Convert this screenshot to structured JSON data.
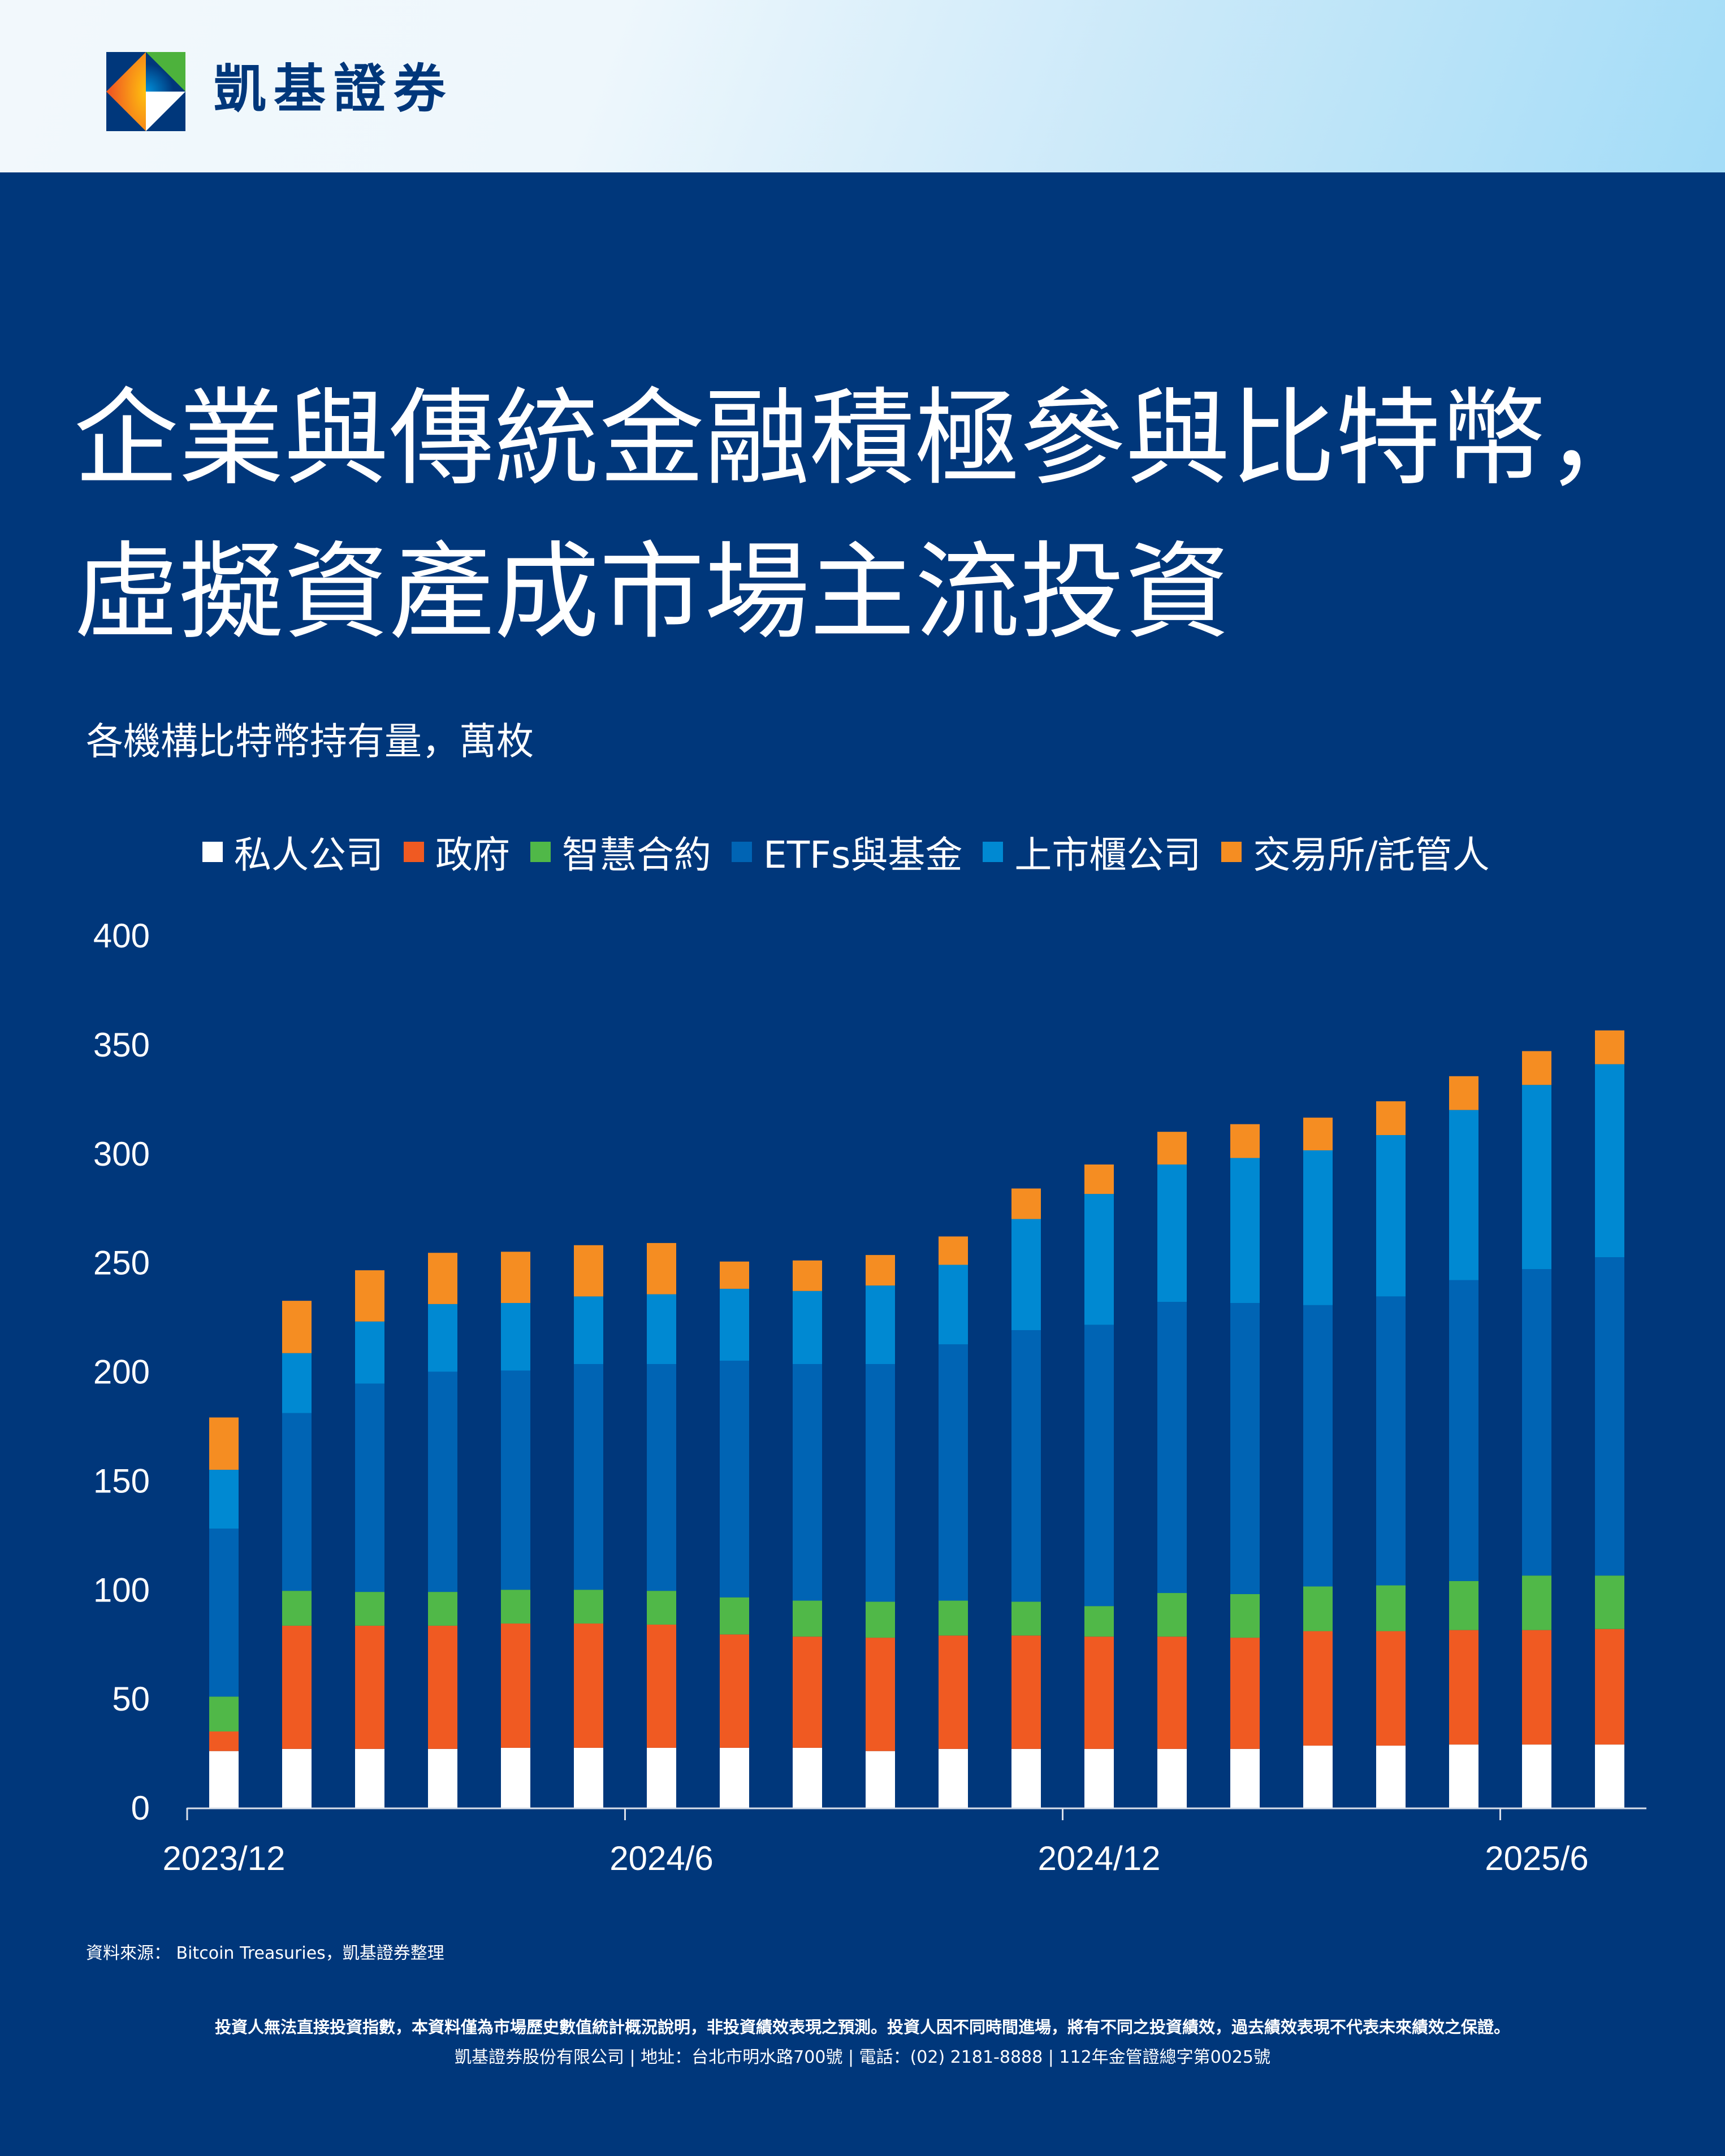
{
  "header": {
    "brand_name": "凱基證券",
    "logo_colors": {
      "navy": "#00377b",
      "green": "#4db23c",
      "orange": "#f05a22",
      "yellow": "#ffc20e",
      "blue": "#0093dd",
      "white": "#ffffff"
    }
  },
  "title": {
    "line1": "企業與傳統金融積極參與比特幣，",
    "line2": "虛擬資產成市場主流投資"
  },
  "colors": {
    "background": "#00377b",
    "axis": "#d9dfea",
    "text": "#ffffff"
  },
  "chart_data": {
    "type": "bar",
    "stacked": true,
    "title": "各機構比特幣持有量，萬枚",
    "xlabel": "",
    "ylabel": "",
    "ylim": [
      0,
      400
    ],
    "y_ticks": [
      "0",
      "50",
      "100",
      "150",
      "200",
      "250",
      "300",
      "350",
      "400"
    ],
    "x_tick_labels": [
      {
        "bar_index": 0,
        "label": "2023/12"
      },
      {
        "bar_index": 6,
        "label": "2024/6"
      },
      {
        "bar_index": 12,
        "label": "2024/12"
      },
      {
        "bar_index": 18,
        "label": "2025/6"
      }
    ],
    "grid": false,
    "legend_position": "top",
    "bar_count": 20,
    "series": [
      {
        "name": "私人公司",
        "color": "#ffffff",
        "values": [
          26,
          27,
          27,
          27,
          27.5,
          27.5,
          27.5,
          27.5,
          27.5,
          26,
          27,
          27,
          27,
          27,
          27,
          28.5,
          28.5,
          29,
          29,
          29
        ]
      },
      {
        "name": "政府",
        "color": "#f05a22",
        "values": [
          9,
          56.5,
          56.5,
          56.5,
          57,
          57,
          56.5,
          52,
          51,
          52,
          52,
          52,
          51.5,
          51.5,
          51,
          52.5,
          52.5,
          52.5,
          52.5,
          53
        ]
      },
      {
        "name": "智慧合約",
        "color": "#50b848",
        "values": [
          16,
          16,
          15.5,
          15.5,
          15.5,
          15.5,
          15.5,
          17,
          16.5,
          16.5,
          16,
          15.5,
          14,
          20,
          20,
          20.5,
          21,
          22.5,
          25,
          24.5
        ]
      },
      {
        "name": "ETFs與基金",
        "color": "#0064b4",
        "values": [
          77,
          81.5,
          95.5,
          101,
          100.5,
          103.5,
          104,
          108.5,
          108.5,
          109,
          117.5,
          124.5,
          129,
          133.5,
          133.5,
          129,
          132.5,
          138,
          140.5,
          146
        ]
      },
      {
        "name": "上市櫃公司",
        "color": "#0089d2",
        "values": [
          27,
          27.5,
          28.5,
          31,
          31,
          31,
          32,
          33,
          33.5,
          36,
          36.5,
          51,
          60,
          63,
          66.5,
          71,
          74,
          78,
          84.5,
          88.5
        ]
      },
      {
        "name": "交易所/託管人",
        "color": "#f58d22",
        "values": [
          24,
          24,
          23.5,
          23.5,
          23.5,
          23.5,
          23.5,
          12.5,
          14,
          14,
          13,
          14,
          13.5,
          15,
          15.5,
          15,
          15.5,
          15.5,
          15.5,
          15.5
        ]
      }
    ]
  },
  "footer": {
    "source": "資料來源： Bitcoin Treasuries，凱基證券整理",
    "disclaimer": "投資人無法直接投資指數，本資料僅為市場歷史數值統計概況說明，非投資績效表現之預測。投資人因不同時間進場，將有不同之投資績效，過去績效表現不代表未來績效之保證。",
    "company_info": "凱基證券股份有限公司 | 地址：台北市明水路700號 | 電話：(02) 2181-8888 | 112年金管證總字第0025號"
  }
}
